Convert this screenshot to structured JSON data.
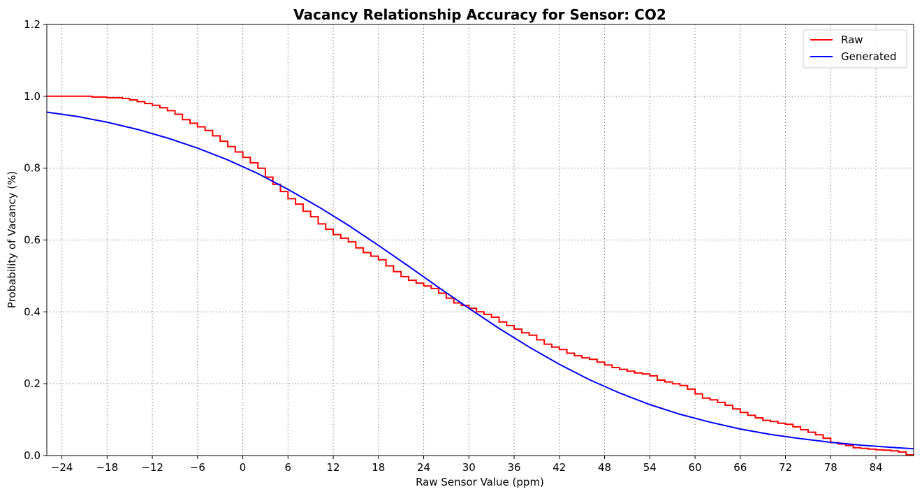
{
  "chart_data": {
    "type": "line",
    "title": "Vacancy Relationship Accuracy for Sensor: CO2",
    "xlabel": "Raw Sensor Value (ppm)",
    "ylabel": "Probability of Vacancy (%)",
    "xlim": [
      -26,
      89
    ],
    "ylim": [
      0.0,
      1.2
    ],
    "xticks": [
      -24,
      -18,
      -12,
      -6,
      0,
      6,
      12,
      18,
      24,
      30,
      36,
      42,
      48,
      54,
      60,
      66,
      72,
      78,
      84
    ],
    "xtick_labels": [
      "−24",
      "−18",
      "−12",
      "−6",
      "0",
      "6",
      "12",
      "18",
      "24",
      "30",
      "36",
      "42",
      "48",
      "54",
      "60",
      "66",
      "72",
      "78",
      "84"
    ],
    "yticks": [
      0.0,
      0.2,
      0.4,
      0.6,
      0.8,
      1.0,
      1.2
    ],
    "ytick_labels": [
      "0.0",
      "0.2",
      "0.4",
      "0.6",
      "0.8",
      "1.0",
      "1.2"
    ],
    "grid": true,
    "legend_position": "top-right",
    "series": [
      {
        "name": "Raw",
        "color": "#ff0000",
        "style": "step",
        "x": [
          -26,
          -20,
          -18,
          -16,
          -15,
          -14,
          -13,
          -12,
          -11,
          -10,
          -9,
          -8,
          -7,
          -6,
          -5,
          -4,
          -3,
          -2,
          -1,
          0,
          1,
          2,
          3,
          4,
          5,
          6,
          7,
          8,
          9,
          10,
          11,
          12,
          13,
          14,
          15,
          16,
          17,
          18,
          19,
          20,
          21,
          22,
          23,
          24,
          25,
          26,
          27,
          28,
          29,
          30,
          31,
          32,
          33,
          34,
          35,
          36,
          37,
          38,
          39,
          40,
          41,
          42,
          43,
          44,
          45,
          46,
          47,
          48,
          49,
          50,
          51,
          52,
          53,
          54,
          55,
          56,
          57,
          58,
          59,
          60,
          61,
          62,
          63,
          64,
          65,
          66,
          67,
          68,
          69,
          70,
          71,
          72,
          73,
          74,
          75,
          76,
          77,
          78,
          79,
          80,
          81,
          82,
          83,
          84,
          85,
          86,
          87,
          88,
          89
        ],
        "y": [
          1.0,
          0.998,
          0.996,
          0.994,
          0.99,
          0.985,
          0.98,
          0.975,
          0.968,
          0.96,
          0.95,
          0.935,
          0.925,
          0.915,
          0.905,
          0.89,
          0.875,
          0.86,
          0.845,
          0.83,
          0.815,
          0.8,
          0.775,
          0.755,
          0.735,
          0.715,
          0.7,
          0.68,
          0.665,
          0.645,
          0.63,
          0.615,
          0.605,
          0.595,
          0.578,
          0.565,
          0.555,
          0.545,
          0.528,
          0.512,
          0.498,
          0.488,
          0.48,
          0.472,
          0.465,
          0.452,
          0.438,
          0.425,
          0.418,
          0.41,
          0.4,
          0.393,
          0.385,
          0.372,
          0.362,
          0.352,
          0.342,
          0.335,
          0.322,
          0.31,
          0.302,
          0.295,
          0.285,
          0.278,
          0.272,
          0.268,
          0.26,
          0.252,
          0.245,
          0.24,
          0.235,
          0.23,
          0.227,
          0.222,
          0.21,
          0.205,
          0.2,
          0.195,
          0.185,
          0.172,
          0.16,
          0.155,
          0.148,
          0.14,
          0.13,
          0.12,
          0.112,
          0.105,
          0.098,
          0.095,
          0.09,
          0.087,
          0.08,
          0.072,
          0.065,
          0.058,
          0.048,
          0.036,
          0.032,
          0.028,
          0.022,
          0.02,
          0.018,
          0.016,
          0.015,
          0.013,
          0.01,
          0.002,
          0.0
        ]
      },
      {
        "name": "Generated",
        "color": "#0000ff",
        "style": "line",
        "x": [
          -26,
          -22,
          -18,
          -14,
          -10,
          -6,
          -2,
          2,
          6,
          10,
          14,
          18,
          22,
          26,
          30,
          34,
          38,
          42,
          46,
          50,
          54,
          58,
          62,
          66,
          70,
          74,
          78,
          82,
          86,
          89
        ],
        "y": [
          0.956,
          0.944,
          0.928,
          0.908,
          0.884,
          0.856,
          0.823,
          0.785,
          0.741,
          0.693,
          0.641,
          0.585,
          0.527,
          0.468,
          0.41,
          0.354,
          0.302,
          0.254,
          0.211,
          0.174,
          0.142,
          0.115,
          0.093,
          0.074,
          0.059,
          0.047,
          0.037,
          0.029,
          0.023,
          0.019
        ]
      }
    ]
  }
}
